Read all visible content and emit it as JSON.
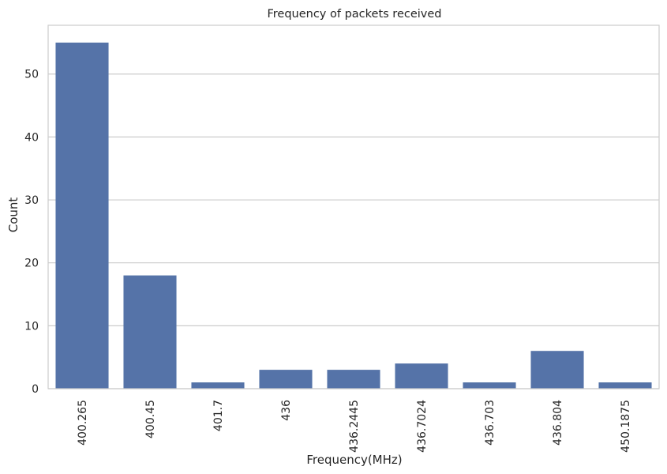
{
  "chart_data": {
    "type": "bar",
    "title": "Frequency of packets received",
    "xlabel": "Frequency(MHz)",
    "ylabel": "Count",
    "categories": [
      "400.265",
      "400.45",
      "401.7",
      "436",
      "436.2445",
      "436.7024",
      "436.703",
      "436.804",
      "450.1875"
    ],
    "values": [
      55,
      18,
      1,
      3,
      3,
      4,
      1,
      6,
      1
    ],
    "yticks": [
      0,
      10,
      20,
      30,
      40,
      50
    ],
    "ylim": [
      0,
      57.75
    ],
    "grid": "horizontal",
    "colors": {
      "bar": "#5573a8",
      "grid": "#cccccc",
      "spine": "#cccccc",
      "text": "#262626"
    }
  }
}
